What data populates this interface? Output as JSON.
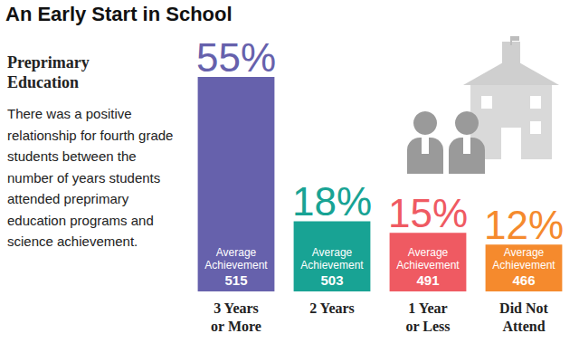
{
  "chart_data": {
    "type": "bar",
    "title": "An Early Start in School",
    "subtitle": "Preprimary Education",
    "annotation": "There was a positive relationship for fourth grade students between the number of years students attended preprimary education programs and science achievement.",
    "categories": [
      "3 Years or More",
      "2 Years",
      "1 Year or Less",
      "Did Not Attend"
    ],
    "values": [
      55,
      18,
      15,
      12
    ],
    "value_labels": [
      "55%",
      "18%",
      "15%",
      "12%"
    ],
    "colors": [
      "#6661ac",
      "#18a394",
      "#ef5a62",
      "#f58a2d"
    ],
    "achievement_label": "Average Achievement",
    "achievement": [
      515,
      503,
      491,
      466
    ],
    "ylim": [
      0,
      55
    ],
    "data_labels": true,
    "tick_labels": "x"
  }
}
